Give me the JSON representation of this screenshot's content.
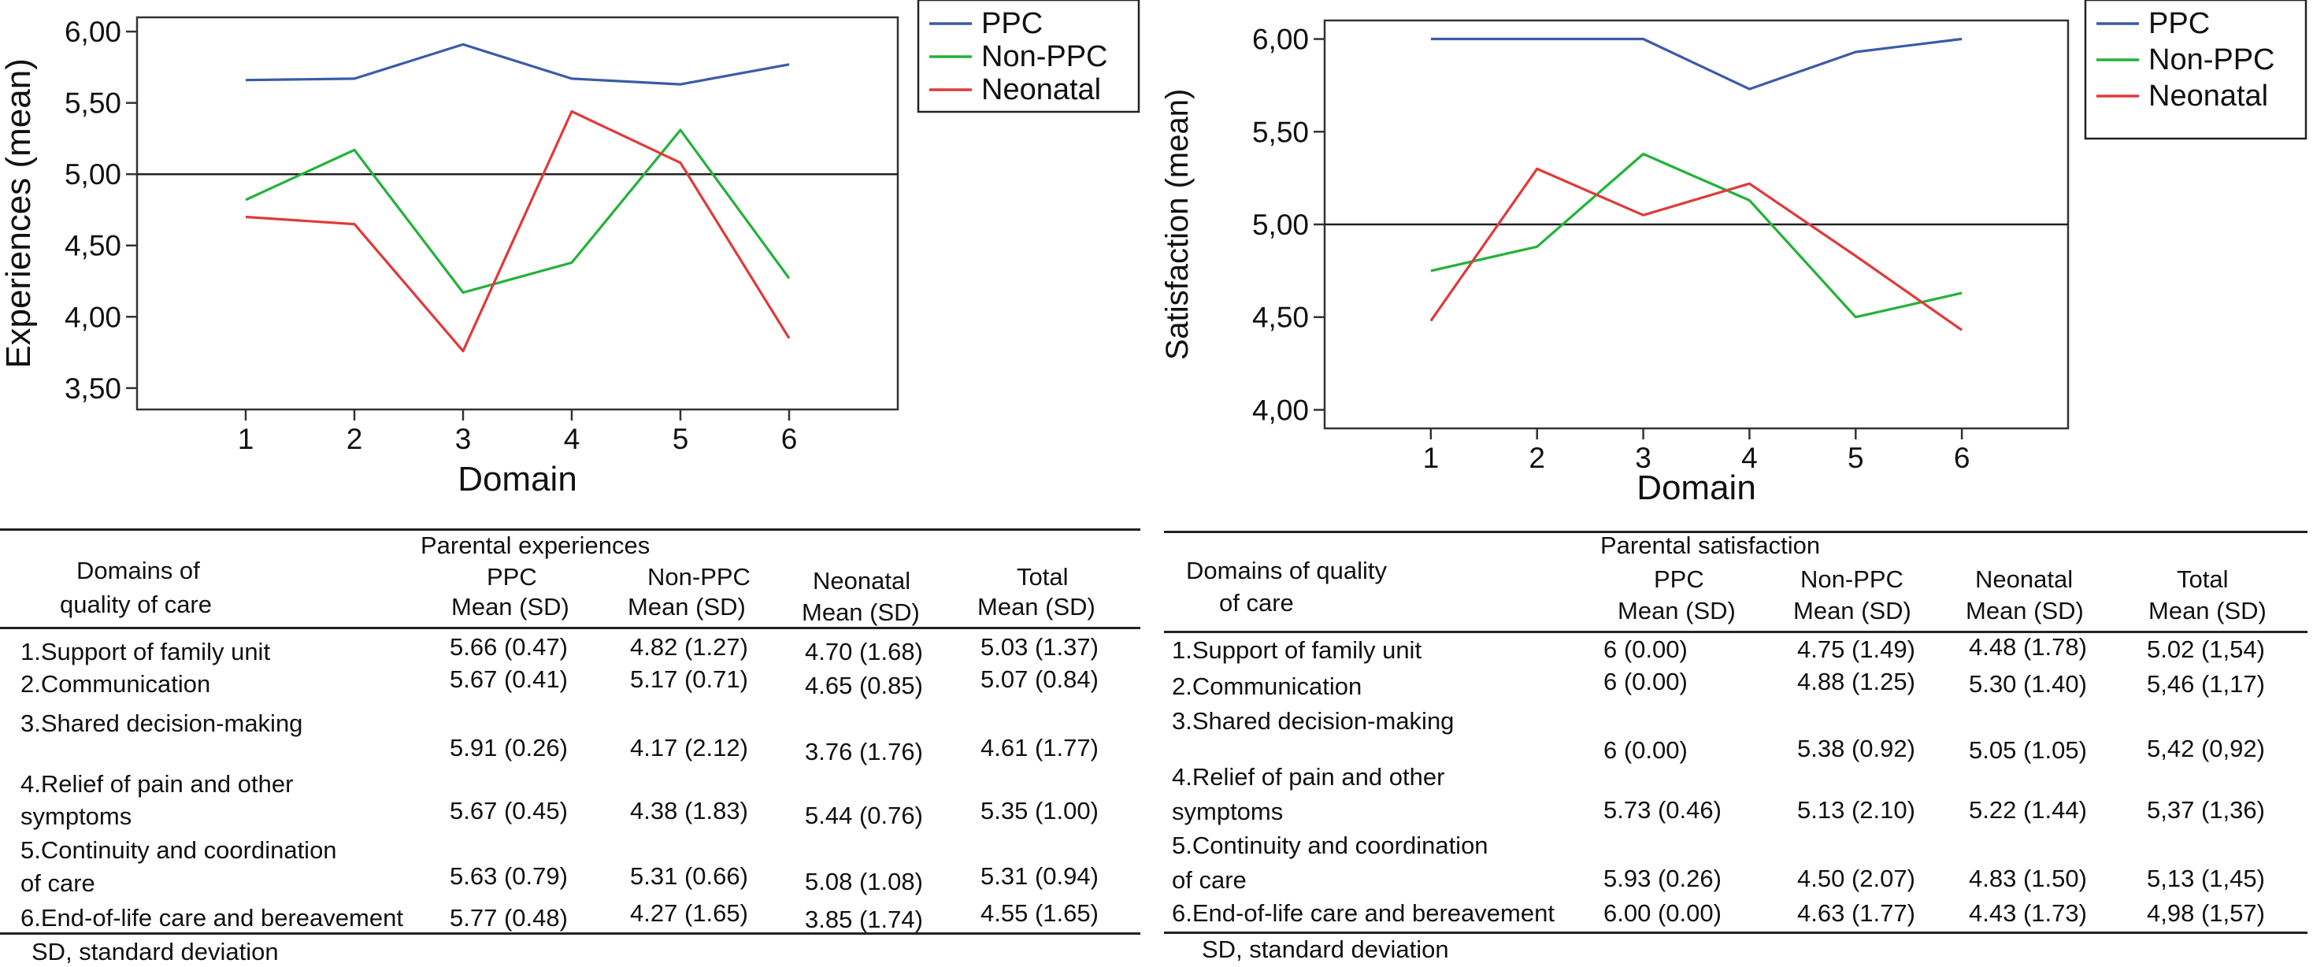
{
  "chart_data": [
    {
      "type": "line",
      "ylabel": "Experiences  (mean)",
      "xlabel": "Domain",
      "x": [
        1,
        2,
        3,
        4,
        5,
        6
      ],
      "xlim": [
        0.0,
        7.0
      ],
      "ylim": [
        3.35,
        6.1
      ],
      "yticks": [
        3.5,
        4.0,
        4.5,
        5.0,
        5.5,
        6.0
      ],
      "ytick_labels": [
        "3,50",
        "4,00",
        "4,50",
        "5,00",
        "5,50",
        "6,00"
      ],
      "reference_line": 5.0,
      "legend_position": "top-right outside",
      "series": [
        {
          "name": "PPC",
          "color": "#3a5ba8",
          "values": [
            5.66,
            5.67,
            5.91,
            5.67,
            5.63,
            5.77
          ]
        },
        {
          "name": "Non-PPC",
          "color": "#22b23a",
          "values": [
            4.82,
            5.17,
            4.17,
            4.38,
            5.31,
            4.27
          ]
        },
        {
          "name": "Neonatal",
          "color": "#e03a3a",
          "values": [
            4.7,
            4.65,
            3.76,
            5.44,
            5.08,
            3.85
          ]
        }
      ]
    },
    {
      "type": "line",
      "ylabel": "Satisfaction (mean)",
      "xlabel": "Domain",
      "x": [
        1,
        2,
        3,
        4,
        5,
        6
      ],
      "xlim": [
        0.0,
        7.0
      ],
      "ylim": [
        3.9,
        6.1
      ],
      "yticks": [
        4.0,
        4.5,
        5.0,
        5.5,
        6.0
      ],
      "ytick_labels": [
        "4,00",
        "4,50",
        "5,00",
        "5,50",
        "6,00"
      ],
      "reference_line": 5.0,
      "legend_position": "top-right outside",
      "series": [
        {
          "name": "PPC",
          "color": "#3a5ba8",
          "values": [
            6.0,
            6.0,
            6.0,
            5.73,
            5.93,
            6.0
          ]
        },
        {
          "name": "Non-PPC",
          "color": "#22b23a",
          "values": [
            4.75,
            4.88,
            5.38,
            5.13,
            4.5,
            4.63
          ]
        },
        {
          "name": "Neonatal",
          "color": "#e03a3a",
          "values": [
            4.48,
            5.3,
            5.05,
            5.22,
            4.83,
            4.43
          ]
        }
      ]
    }
  ],
  "tables": [
    {
      "caption": "Parental experiences",
      "row_header": [
        "Domains of",
        "quality of care"
      ],
      "columns": [
        {
          "top": "PPC",
          "bottom": "Mean (SD)"
        },
        {
          "top": "Non-PPC",
          "bottom": "Mean (SD)"
        },
        {
          "top": "Neonatal",
          "bottom": "Mean (SD)"
        },
        {
          "top": "Total",
          "bottom": "Mean (SD)"
        }
      ],
      "rows": [
        {
          "label": [
            "1.Support of family unit"
          ],
          "cells": [
            "5.66 (0.47)",
            "4.82 (1.27)",
            "4.70 (1.68)",
            "5.03 (1.37)"
          ]
        },
        {
          "label": [
            "2.Communication"
          ],
          "cells": [
            "5.67 (0.41)",
            "5.17 (0.71)",
            "4.65 (0.85)",
            "5.07 (0.84)"
          ]
        },
        {
          "label": [
            "3.Shared decision-making"
          ],
          "cells": [
            "5.91 (0.26)",
            "4.17 (2.12)",
            "3.76 (1.76)",
            "4.61 (1.77)"
          ]
        },
        {
          "label": [
            "4.Relief of pain and other",
            "symptoms"
          ],
          "cells": [
            "5.67 (0.45)",
            "4.38 (1.83)",
            "5.44 (0.76)",
            "5.35 (1.00)"
          ]
        },
        {
          "label": [
            "5.Continuity and coordination",
            "of care"
          ],
          "cells": [
            "5.63 (0.79)",
            "5.31 (0.66)",
            "5.08 (1.08)",
            "5.31 (0.94)"
          ]
        },
        {
          "label": [
            "6.End-of-life care and bereavement"
          ],
          "cells": [
            "5.77 (0.48)",
            "4.27 (1.65)",
            "3.85 (1.74)",
            "4.55 (1.65)"
          ]
        }
      ],
      "footnote": "SD, standard deviation"
    },
    {
      "caption": "Parental satisfaction",
      "row_header": [
        "Domains of quality",
        "of care"
      ],
      "columns": [
        {
          "top": "PPC",
          "bottom": "Mean (SD)"
        },
        {
          "top": "Non-PPC",
          "bottom": "Mean (SD)"
        },
        {
          "top": "Neonatal",
          "bottom": "Mean (SD)"
        },
        {
          "top": "Total",
          "bottom": "Mean (SD)"
        }
      ],
      "rows": [
        {
          "label": [
            "1.Support of family unit"
          ],
          "cells": [
            "6 (0.00)",
            "4.75 (1.49)",
            "4.48 (1.78)",
            "5.02 (1,54)"
          ]
        },
        {
          "label": [
            "2.Communication"
          ],
          "cells": [
            "6 (0.00)",
            "4.88 (1.25)",
            "5.30 (1.40)",
            "5,46 (1,17)"
          ]
        },
        {
          "label": [
            "3.Shared decision-making"
          ],
          "cells": [
            "6 (0.00)",
            "5.38 (0.92)",
            "5.05 (1.05)",
            "5,42 (0,92)"
          ]
        },
        {
          "label": [
            "4.Relief of pain and other",
            "symptoms"
          ],
          "cells": [
            "5.73 (0.46)",
            "5.13 (2.10)",
            "5.22 (1.44)",
            "5,37 (1,36)"
          ]
        },
        {
          "label": [
            "5.Continuity and coordination",
            "of care"
          ],
          "cells": [
            "5.93 (0.26)",
            "4.50 (2.07)",
            "4.83 (1.50)",
            "5,13 (1,45)"
          ]
        },
        {
          "label": [
            "6.End-of-life care and bereavement"
          ],
          "cells": [
            "6.00 (0.00)",
            "4.63 (1.77)",
            "4.43 (1.73)",
            "4,98 (1,57)"
          ]
        }
      ],
      "footnote": "SD, standard deviation"
    }
  ]
}
